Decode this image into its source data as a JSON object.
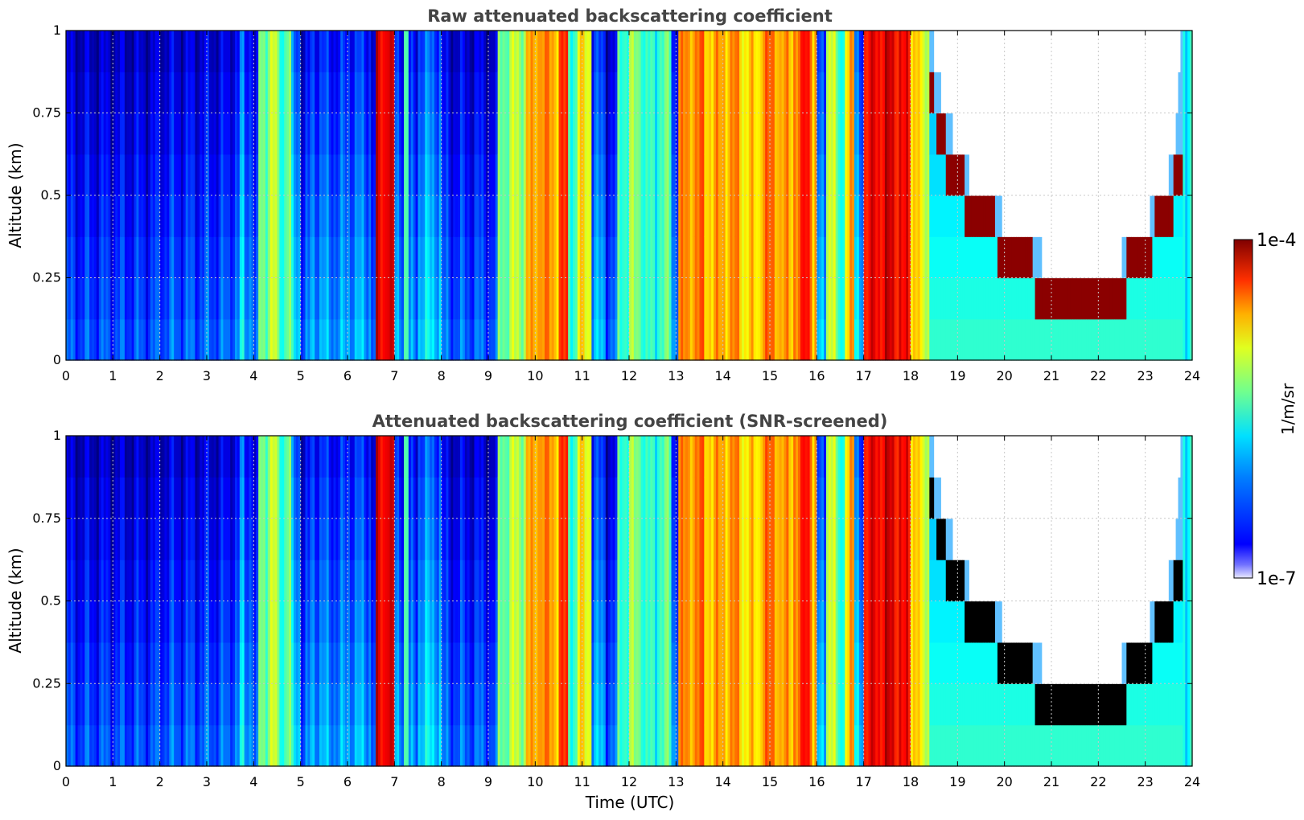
{
  "chart_data": [
    {
      "type": "heatmap",
      "title": "Raw attenuated backscattering coefficient",
      "xlabel": "",
      "ylabel": "Altitude (km)",
      "xlim": [
        0,
        24
      ],
      "ylim": [
        0,
        1
      ],
      "xticks": [
        "0",
        "1",
        "2",
        "3",
        "4",
        "5",
        "6",
        "7",
        "8",
        "9",
        "10",
        "11",
        "12",
        "13",
        "14",
        "15",
        "16",
        "17",
        "18",
        "19",
        "20",
        "21",
        "22",
        "23",
        "24"
      ],
      "yticks": [
        "0",
        "0.25",
        "0.5",
        "0.75",
        "1"
      ],
      "grid": true,
      "screened": false,
      "clear_sky_top": [
        [
          18.4,
          1.0
        ],
        [
          18.8,
          0.72
        ],
        [
          19.3,
          0.55
        ],
        [
          19.8,
          0.47
        ],
        [
          20.3,
          0.37
        ],
        [
          20.8,
          0.31
        ],
        [
          21.2,
          0.29
        ],
        [
          21.6,
          0.26
        ],
        [
          22.0,
          0.25
        ],
        [
          22.3,
          0.27
        ],
        [
          22.6,
          0.33
        ],
        [
          23.0,
          0.41
        ],
        [
          23.3,
          0.48
        ],
        [
          23.6,
          0.62
        ],
        [
          23.8,
          1.0
        ]
      ],
      "band_over_cloud": [
        [
          18.4,
          0.82
        ],
        [
          18.8,
          0.6
        ],
        [
          19.3,
          0.46
        ],
        [
          19.8,
          0.38
        ],
        [
          20.3,
          0.3
        ],
        [
          20.8,
          0.22
        ],
        [
          21.2,
          0.18
        ],
        [
          21.6,
          0.15
        ],
        [
          22.0,
          0.14
        ],
        [
          22.3,
          0.18
        ],
        [
          22.6,
          0.25
        ],
        [
          23.0,
          0.34
        ],
        [
          23.3,
          0.4
        ],
        [
          23.6,
          0.5
        ],
        [
          23.8,
          0.6
        ]
      ]
    },
    {
      "type": "heatmap",
      "title": "Attenuated backscattering coefficient (SNR-screened)",
      "xlabel": "Time (UTC)",
      "ylabel": "Altitude (km)",
      "xlim": [
        0,
        24
      ],
      "ylim": [
        0,
        1
      ],
      "xticks": [
        "0",
        "1",
        "2",
        "3",
        "4",
        "5",
        "6",
        "7",
        "8",
        "9",
        "10",
        "11",
        "12",
        "13",
        "14",
        "15",
        "16",
        "17",
        "18",
        "19",
        "20",
        "21",
        "22",
        "23",
        "24"
      ],
      "yticks": [
        "0",
        "0.25",
        "0.5",
        "0.75",
        "1"
      ],
      "grid": true,
      "screened": true,
      "clear_sky_top": [
        [
          18.4,
          1.0
        ],
        [
          18.8,
          0.72
        ],
        [
          19.3,
          0.55
        ],
        [
          19.8,
          0.47
        ],
        [
          20.3,
          0.37
        ],
        [
          20.8,
          0.31
        ],
        [
          21.2,
          0.29
        ],
        [
          21.6,
          0.26
        ],
        [
          22.0,
          0.25
        ],
        [
          22.3,
          0.27
        ],
        [
          22.6,
          0.33
        ],
        [
          23.0,
          0.41
        ],
        [
          23.3,
          0.48
        ],
        [
          23.6,
          0.62
        ],
        [
          23.8,
          1.0
        ]
      ],
      "band_over_cloud": [
        [
          18.4,
          0.82
        ],
        [
          18.8,
          0.6
        ],
        [
          19.3,
          0.46
        ],
        [
          19.8,
          0.38
        ],
        [
          20.3,
          0.3
        ],
        [
          20.8,
          0.22
        ],
        [
          21.2,
          0.18
        ],
        [
          21.6,
          0.15
        ],
        [
          22.0,
          0.14
        ],
        [
          22.3,
          0.18
        ],
        [
          22.6,
          0.25
        ],
        [
          23.0,
          0.34
        ],
        [
          23.3,
          0.4
        ],
        [
          23.6,
          0.5
        ],
        [
          23.8,
          0.6
        ]
      ]
    }
  ],
  "colorbar": {
    "label": "1/m/sr",
    "max_label": "1e-4",
    "min_label": "1e-7",
    "colormap": "jet",
    "scale": "log",
    "range": [
      1e-07,
      0.0001
    ]
  },
  "vertical_profile_levels": {
    "times": [
      0,
      0.5,
      1,
      1.5,
      2,
      2.5,
      3,
      3.5,
      3.7,
      3.8,
      4.0,
      4.1,
      4.3,
      4.5,
      4.7,
      4.8,
      5.0,
      5.2,
      5.5,
      6.0,
      6.5,
      6.6,
      6.8,
      6.9,
      7.0,
      7.2,
      7.3,
      7.5,
      8.0,
      8.5,
      9.0,
      9.2,
      9.5,
      9.8,
      10.0,
      10.2,
      10.5,
      10.7,
      10.9,
      11.2,
      11.5,
      11.75,
      12.0,
      12.3,
      12.6,
      12.9,
      13.05,
      13.3,
      13.6,
      14.0,
      14.4,
      14.8,
      15.2,
      15.5,
      15.7,
      15.9,
      16.0,
      16.2,
      16.4,
      16.6,
      16.8,
      17.0,
      17.2,
      17.5,
      17.8,
      18.0,
      18.2,
      18.4,
      24
    ],
    "levels": [
      0.2,
      0.2,
      0.2,
      0.2,
      0.22,
      0.22,
      0.22,
      0.25,
      0.35,
      0.3,
      0.18,
      0.5,
      0.55,
      0.45,
      0.5,
      0.35,
      0.22,
      0.3,
      0.28,
      0.3,
      0.22,
      0.88,
      0.95,
      0.88,
      0.3,
      0.45,
      0.25,
      0.35,
      0.22,
      0.22,
      0.2,
      0.5,
      0.55,
      0.68,
      0.75,
      0.72,
      0.8,
      0.45,
      0.62,
      0.3,
      0.22,
      0.45,
      0.5,
      0.4,
      0.45,
      0.3,
      0.72,
      0.75,
      0.7,
      0.72,
      0.65,
      0.75,
      0.7,
      0.78,
      0.85,
      0.7,
      0.3,
      0.6,
      0.4,
      0.7,
      0.35,
      0.85,
      0.9,
      0.9,
      0.85,
      0.7,
      0.55,
      0.4,
      0.4
    ]
  }
}
